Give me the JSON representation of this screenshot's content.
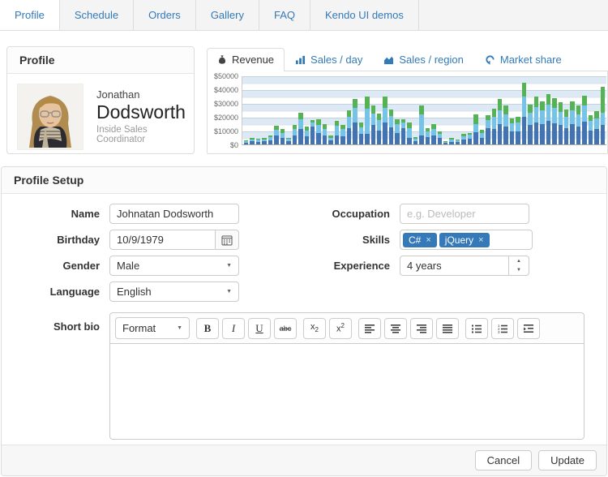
{
  "nav": {
    "tabs": [
      {
        "label": "Profile",
        "active": true
      },
      {
        "label": "Schedule",
        "active": false
      },
      {
        "label": "Orders",
        "active": false
      },
      {
        "label": "Gallery",
        "active": false
      },
      {
        "label": "FAQ",
        "active": false
      },
      {
        "label": "Kendo UI demos",
        "active": false
      }
    ]
  },
  "profile_card": {
    "title": "Profile",
    "first_name": "Jonathan",
    "last_name": "Dodsworth",
    "role": "Inside Sales Coordinator",
    "photo": "portrait-of-man-with-glasses-and-scarf"
  },
  "chart_panel": {
    "tabs": [
      {
        "label": "Revenue",
        "icon": "money-icon",
        "active": true
      },
      {
        "label": "Sales / day",
        "icon": "bar-chart-icon",
        "active": false
      },
      {
        "label": "Sales / region",
        "icon": "area-chart-icon",
        "active": false
      },
      {
        "label": "Market share",
        "icon": "refresh-icon",
        "active": false
      }
    ]
  },
  "chart_data": {
    "type": "bar",
    "stacked": true,
    "title": "Revenue",
    "xlabel": "",
    "ylabel": "",
    "ylim": [
      0,
      50000
    ],
    "ytick_labels": [
      "$50000",
      "$40000",
      "$30000",
      "$20000",
      "$10000",
      "$0"
    ],
    "grid": true,
    "plot_bands": "alternating light-blue horizontal bands every 5000",
    "legend": "none",
    "series": [
      {
        "name": "bottom-segment",
        "color": "#4473b2",
        "values": [
          1500,
          2200,
          2000,
          2100,
          3200,
          6500,
          5000,
          2400,
          6500,
          11000,
          6000,
          13000,
          8000,
          6500,
          2800,
          6500,
          6000,
          12000,
          16000,
          7500,
          7500,
          14000,
          10000,
          16000,
          12500,
          8500,
          11500,
          5000,
          2500,
          6500,
          5500,
          6500,
          4500,
          1200,
          2000,
          1800,
          3500,
          4000,
          9000,
          5000,
          12000,
          11000,
          15000,
          13000,
          9500,
          9500,
          20000,
          14000,
          16000,
          14500,
          17000,
          15500,
          14000,
          12000,
          14500,
          13000,
          16500,
          10000,
          11000,
          14000
        ]
      },
      {
        "name": "middle-segment",
        "color": "#75c3e6",
        "values": [
          900,
          1600,
          1300,
          1500,
          2100,
          4000,
          3500,
          1600,
          4500,
          7000,
          4200,
          2800,
          6000,
          4500,
          2000,
          7300,
          5000,
          8000,
          10500,
          5000,
          18500,
          8500,
          7500,
          10500,
          8000,
          6000,
          4500,
          6500,
          1800,
          15000,
          4000,
          4500,
          3000,
          800,
          1500,
          1200,
          2500,
          2800,
          6000,
          3500,
          5500,
          9000,
          10000,
          9000,
          6000,
          6500,
          15000,
          9000,
          11000,
          10000,
          12000,
          11000,
          9500,
          8000,
          10000,
          9000,
          11500,
          7000,
          8000,
          9000
        ]
      },
      {
        "name": "top-segment",
        "color": "#55b255",
        "values": [
          600,
          1000,
          1000,
          1000,
          1500,
          3000,
          2500,
          1000,
          3200,
          4800,
          3000,
          2000,
          4000,
          3500,
          1400,
          3500,
          3000,
          4800,
          6500,
          3500,
          9000,
          6000,
          5000,
          8500,
          5000,
          3500,
          2500,
          4500,
          1200,
          7000,
          2500,
          3500,
          2000,
          500,
          1000,
          800,
          1500,
          1700,
          7000,
          2000,
          4000,
          6000,
          8000,
          6000,
          3500,
          4000,
          9500,
          6000,
          7500,
          6500,
          7500,
          7000,
          7000,
          5500,
          6500,
          6500,
          7500,
          4500,
          5000,
          19000
        ]
      }
    ]
  },
  "form": {
    "title": "Profile Setup",
    "name": {
      "label": "Name",
      "value": "Johnatan Dodsworth"
    },
    "birthday": {
      "label": "Birthday",
      "value": "10/9/1979"
    },
    "gender": {
      "label": "Gender",
      "value": "Male"
    },
    "language": {
      "label": "Language",
      "value": "English"
    },
    "occupation": {
      "label": "Occupation",
      "value": "",
      "placeholder": "e.g. Developer"
    },
    "skills": {
      "label": "Skills",
      "tags": [
        "C#",
        "jQuery"
      ]
    },
    "experience": {
      "label": "Experience",
      "value": "4 years"
    },
    "bio": {
      "label": "Short bio",
      "value": ""
    }
  },
  "editor": {
    "format_label": "Format",
    "toolbar_groups": [
      {
        "name": "text-style",
        "buttons": [
          "bold",
          "italic",
          "underline",
          "strikethrough"
        ]
      },
      {
        "name": "script",
        "buttons": [
          "subscript",
          "superscript"
        ]
      },
      {
        "name": "align",
        "buttons": [
          "align-left",
          "align-center",
          "align-right",
          "align-justify"
        ]
      },
      {
        "name": "lists",
        "buttons": [
          "insert-unordered-list",
          "insert-ordered-list",
          "indent"
        ]
      }
    ]
  },
  "footer": {
    "cancel_label": "Cancel",
    "update_label": "Update"
  },
  "colors": {
    "link_blue": "#337ab7",
    "chip_blue": "#3579b8",
    "band_blue": "#dde9f4",
    "panel_border": "#dddddd",
    "bar_dark_blue": "#4473b2",
    "bar_light_blue": "#75c3e6",
    "bar_green": "#55b255"
  }
}
